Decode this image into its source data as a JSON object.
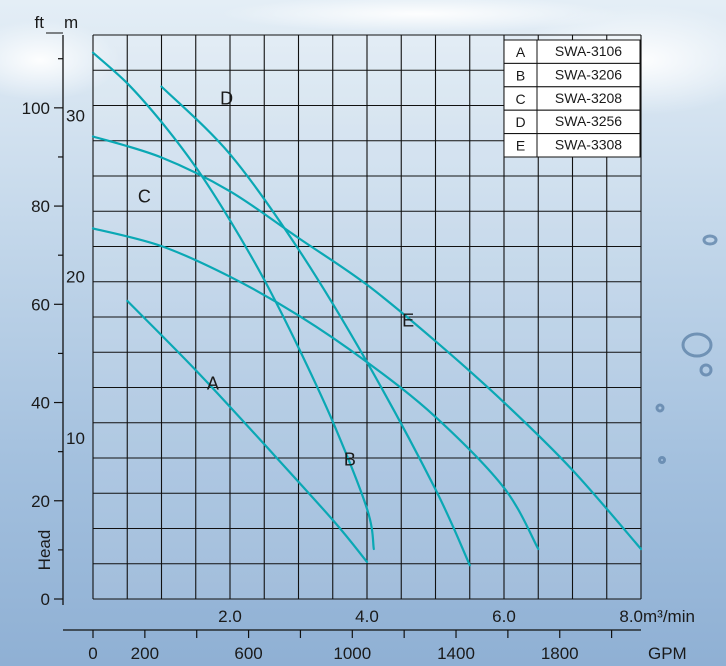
{
  "chart_data": {
    "type": "line",
    "title": "",
    "xlabel": "m³/min",
    "xlabel_secondary": "GPM",
    "ylabel": "Head",
    "ylabel_unit_primary": "ft",
    "ylabel_unit_secondary": "m",
    "xlim": [
      0,
      8.0
    ],
    "ylim_m": [
      0,
      35
    ],
    "grid": true,
    "legend_position": "top-right",
    "x_ticks_m3min": [
      "2.0",
      "4.0",
      "6.0",
      "8.0"
    ],
    "x_ticks_gpm": [
      "0",
      "200",
      "600",
      "1000",
      "1400",
      "1800"
    ],
    "y_ticks_m": [
      "10",
      "20",
      "30"
    ],
    "y_ticks_ft": [
      "0",
      "20",
      "40",
      "60",
      "80",
      "100"
    ],
    "legend": [
      {
        "key": "A",
        "model": "SWA-3106"
      },
      {
        "key": "B",
        "model": "SWA-3206"
      },
      {
        "key": "C",
        "model": "SWA-3208"
      },
      {
        "key": "D",
        "model": "SWA-3256"
      },
      {
        "key": "E",
        "model": "SWA-3308"
      }
    ],
    "series": [
      {
        "name": "A",
        "color": "#0aa8b4",
        "x": [
          0.5,
          1.5,
          2.5,
          3.5,
          4.0
        ],
        "y": [
          18.5,
          14.2,
          9.6,
          4.9,
          2.3
        ]
      },
      {
        "name": "B",
        "color": "#0aa8b4",
        "x": [
          0.0,
          0.5,
          1.0,
          1.5,
          2.0,
          2.5,
          3.0,
          3.5,
          4.0,
          4.1
        ],
        "y": [
          33.9,
          32.0,
          29.6,
          26.8,
          23.5,
          19.8,
          15.6,
          11.0,
          5.6,
          3.1
        ]
      },
      {
        "name": "C",
        "color": "#0aa8b4",
        "x": [
          0.0,
          1.0,
          2.0,
          3.0,
          4.0,
          5.0,
          6.0,
          6.5
        ],
        "y": [
          23.0,
          21.9,
          20.0,
          17.6,
          14.7,
          11.3,
          6.9,
          3.1
        ]
      },
      {
        "name": "D",
        "color": "#0aa8b4",
        "x": [
          1.0,
          2.0,
          3.0,
          4.0,
          5.0,
          5.5
        ],
        "y": [
          31.8,
          27.6,
          21.7,
          14.7,
          6.8,
          2.1
        ]
      },
      {
        "name": "E",
        "color": "#0aa8b4",
        "x": [
          0.0,
          1.0,
          2.0,
          3.0,
          4.0,
          5.0,
          6.0,
          7.0,
          8.0
        ],
        "y": [
          28.7,
          27.4,
          25.3,
          22.4,
          19.5,
          16.0,
          12.2,
          8.0,
          3.1
        ]
      }
    ]
  }
}
